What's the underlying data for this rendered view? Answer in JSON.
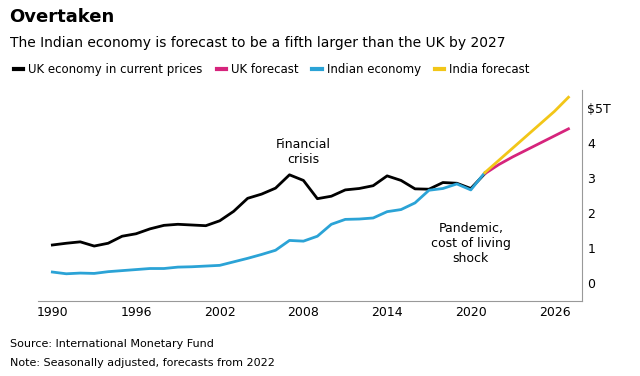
{
  "chart_data": {
    "type": "line",
    "title": "Overtaken",
    "subtitle": "The Indian economy is forecast to be a fifth larger than the UK by 2027",
    "footnotes": [
      "Source: International Monetary Fund",
      "Note: Seasonally adjusted, forecasts from 2022"
    ],
    "x": [
      1990,
      1991,
      1992,
      1993,
      1994,
      1995,
      1996,
      1997,
      1998,
      1999,
      2000,
      2001,
      2002,
      2003,
      2004,
      2005,
      2006,
      2007,
      2008,
      2009,
      2010,
      2011,
      2012,
      2013,
      2014,
      2015,
      2016,
      2017,
      2018,
      2019,
      2020,
      2021,
      2022,
      2023,
      2024,
      2025,
      2026,
      2027
    ],
    "series": [
      {
        "name": "UK economy in current prices",
        "color": "#000000",
        "values": [
          1.09,
          1.14,
          1.18,
          1.06,
          1.14,
          1.34,
          1.41,
          1.55,
          1.65,
          1.68,
          1.66,
          1.64,
          1.78,
          2.05,
          2.42,
          2.54,
          2.71,
          3.09,
          2.93,
          2.41,
          2.48,
          2.66,
          2.7,
          2.78,
          3.06,
          2.93,
          2.69,
          2.68,
          2.87,
          2.85,
          2.7,
          3.12,
          null,
          null,
          null,
          null,
          null,
          null
        ]
      },
      {
        "name": "UK forecast",
        "color": "#d6247c",
        "values": [
          null,
          null,
          null,
          null,
          null,
          null,
          null,
          null,
          null,
          null,
          null,
          null,
          null,
          null,
          null,
          null,
          null,
          null,
          null,
          null,
          null,
          null,
          null,
          null,
          null,
          null,
          null,
          null,
          null,
          null,
          null,
          3.12,
          3.38,
          3.6,
          3.8,
          4.0,
          4.2,
          4.4
        ]
      },
      {
        "name": "Indian economy",
        "color": "#2ba3d6",
        "values": [
          0.32,
          0.27,
          0.29,
          0.28,
          0.33,
          0.36,
          0.39,
          0.42,
          0.42,
          0.46,
          0.47,
          0.49,
          0.51,
          0.61,
          0.71,
          0.82,
          0.94,
          1.22,
          1.2,
          1.34,
          1.68,
          1.82,
          1.83,
          1.86,
          2.04,
          2.1,
          2.29,
          2.65,
          2.7,
          2.83,
          2.66,
          3.15,
          null,
          null,
          null,
          null,
          null,
          null
        ]
      },
      {
        "name": "India forecast",
        "color": "#f2c618",
        "values": [
          null,
          null,
          null,
          null,
          null,
          null,
          null,
          null,
          null,
          null,
          null,
          null,
          null,
          null,
          null,
          null,
          null,
          null,
          null,
          null,
          null,
          null,
          null,
          null,
          null,
          null,
          null,
          null,
          null,
          null,
          null,
          3.15,
          3.5,
          3.85,
          4.2,
          4.55,
          4.9,
          5.3
        ]
      }
    ],
    "annotations": [
      {
        "text": "Financial\ncrisis",
        "x": 2008,
        "y": 3.75
      },
      {
        "text": "Pandemic,\ncost of living\nshock",
        "x": 2020,
        "y": 1.12
      }
    ],
    "xlim": [
      1989,
      2028
    ],
    "xticks": [
      1990,
      1996,
      2002,
      2008,
      2014,
      2020,
      2026
    ],
    "ylim": [
      -0.5,
      5.5
    ],
    "yticks": [
      0,
      1,
      2,
      3,
      4,
      {
        "value": 5,
        "label": "$5T"
      }
    ],
    "grid": false,
    "legend": "upper left"
  }
}
